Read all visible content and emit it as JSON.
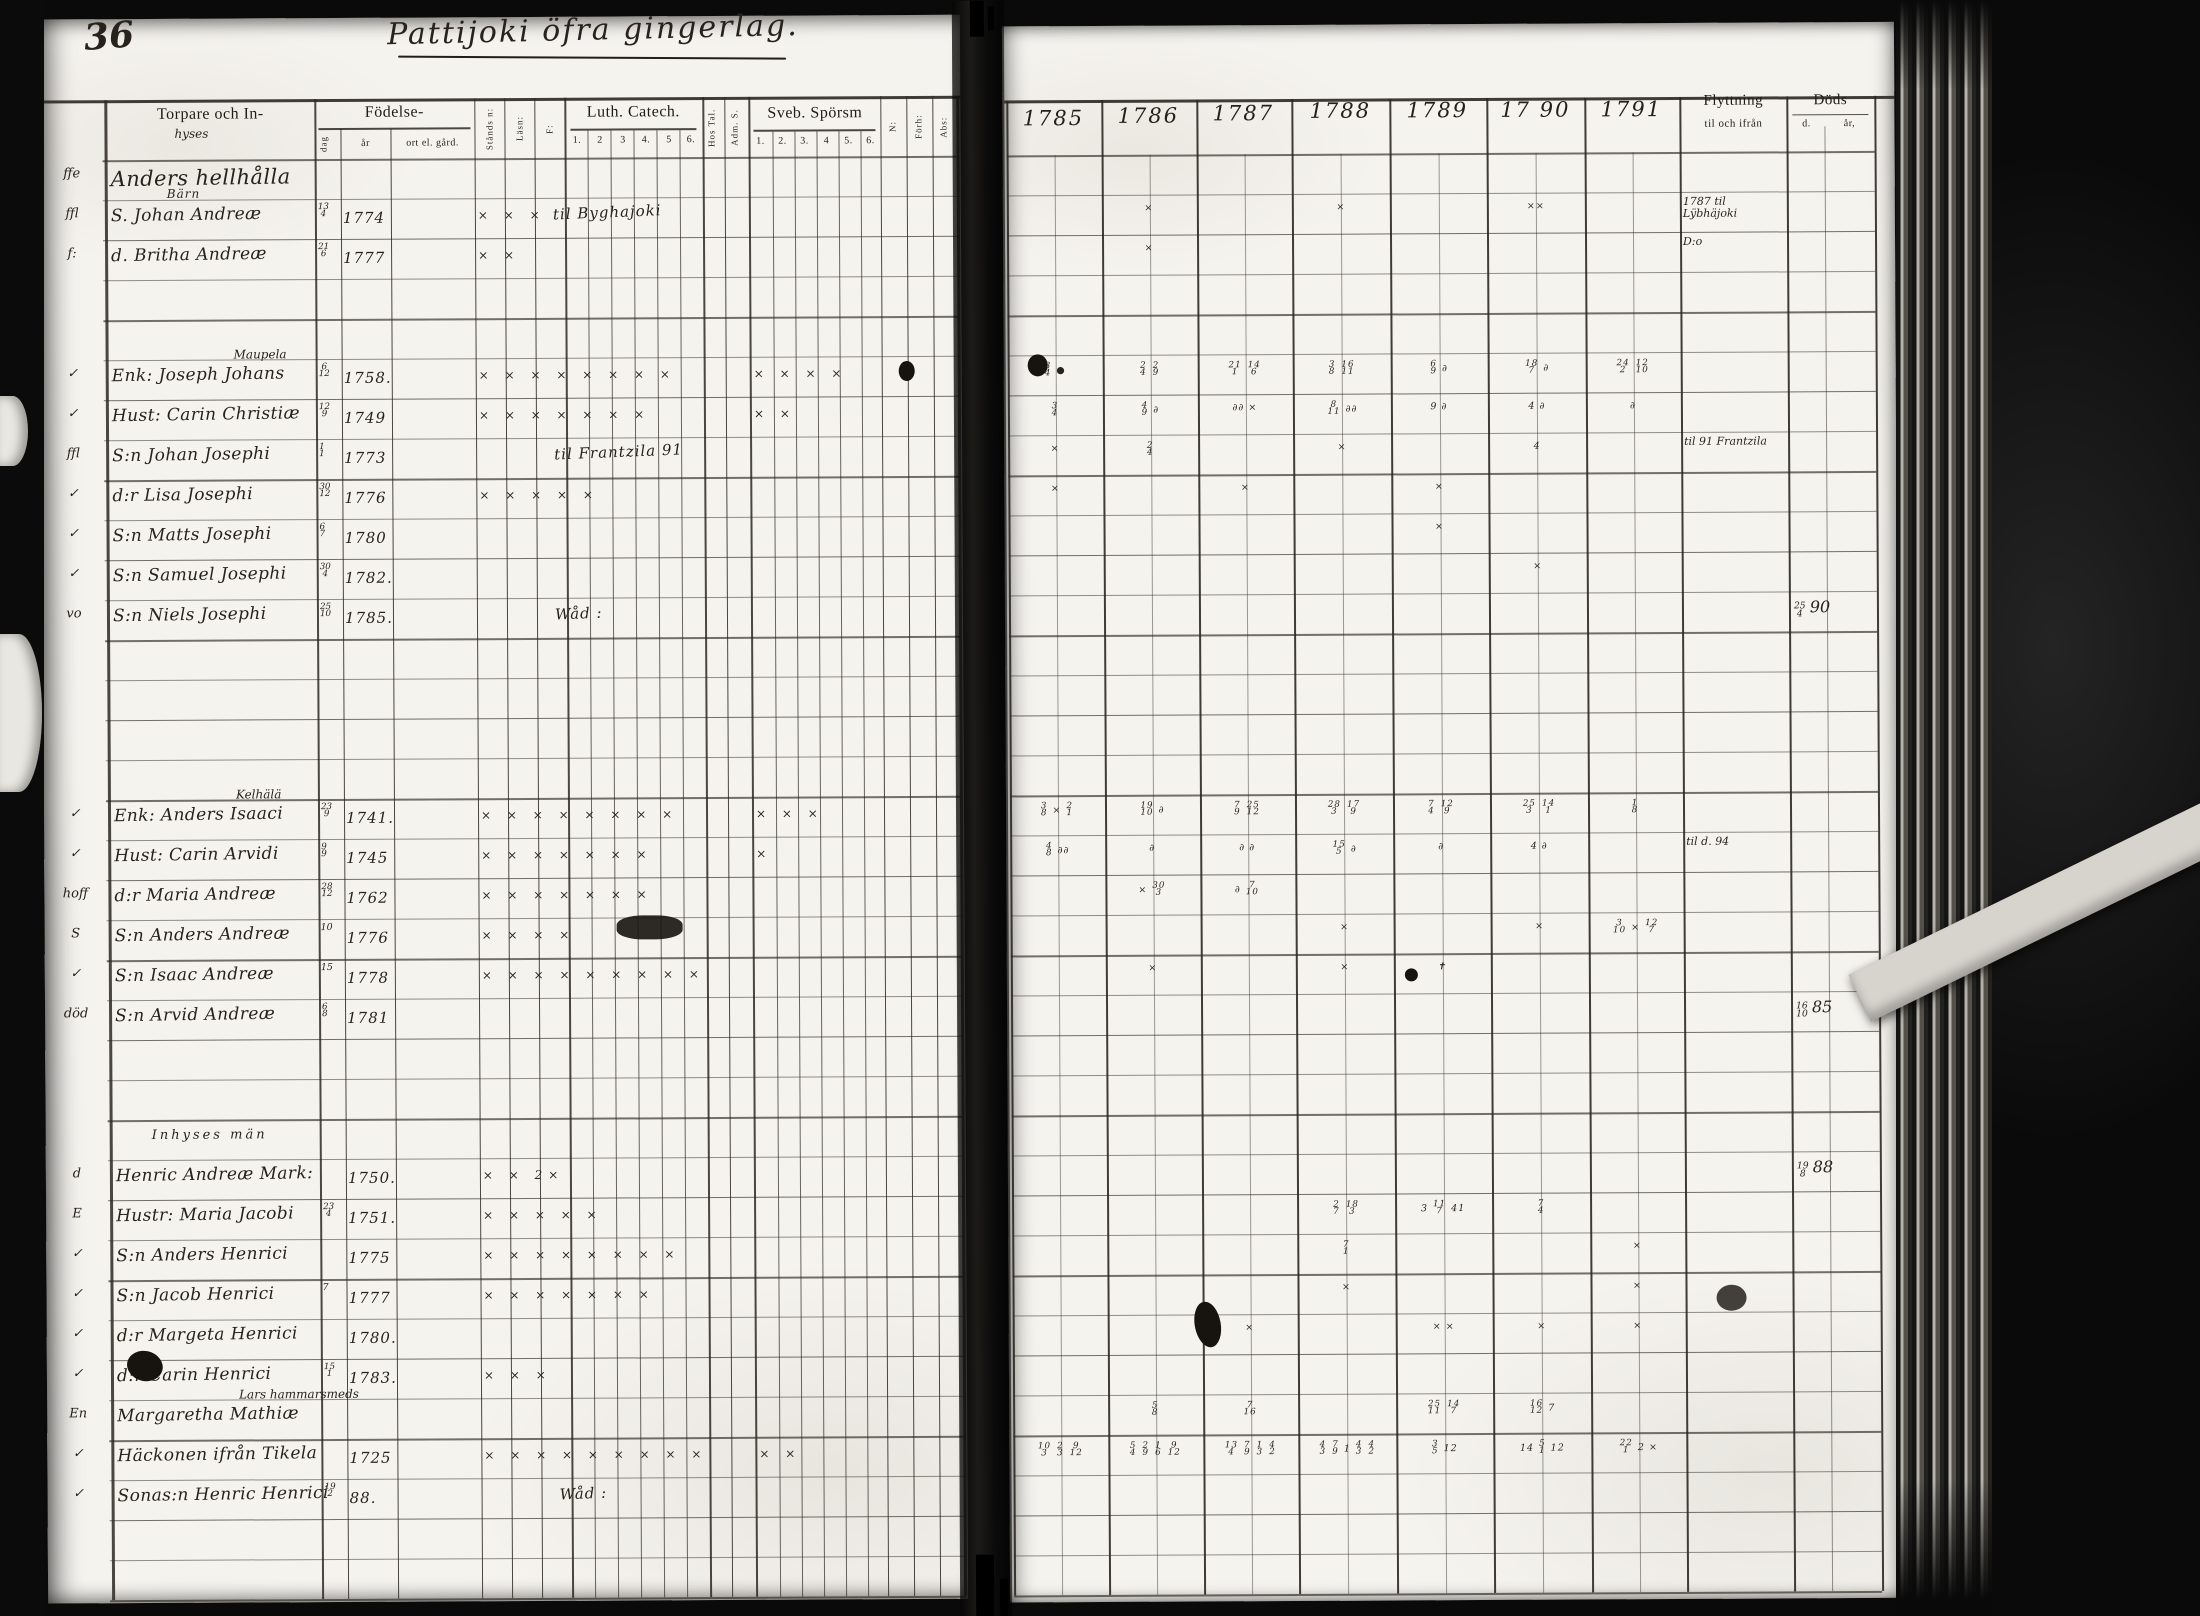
{
  "page": {
    "number": "36",
    "title": "Pattijoki öfra gingerlag."
  },
  "left_table": {
    "name_header": "Torpare och In-",
    "name_header2": "hyses",
    "fodelse": {
      "label": "Födelse-",
      "dag": "dag",
      "ar": "år",
      "ort": "ort el. gård."
    },
    "narrow_left": [
      "Stånds n:",
      "Läsn:",
      "F:"
    ],
    "luth": {
      "label": "Luth. Catech.",
      "nums": [
        "1.",
        "2",
        "3",
        "4.",
        "5",
        "6."
      ]
    },
    "hos": "Hos Tal.",
    "adm": "Adm. S.",
    "sveb": {
      "label": "Sveb. Spörsm",
      "nums": [
        "1.",
        "2.",
        "3.",
        "4",
        "5.",
        "6."
      ]
    },
    "narrow_right": [
      "N:",
      "Förh:",
      "Abs:"
    ]
  },
  "right_table": {
    "years": [
      "1785",
      "1786",
      "1787",
      "1788",
      "1789",
      "17 90",
      "1791"
    ],
    "flytt": {
      "label": "Flyttning",
      "sub": "til och ifrån"
    },
    "dods": {
      "label": "Döds",
      "d": "d.",
      "ar": "år,"
    }
  },
  "rows": [
    {
      "i": 0,
      "big": true,
      "marker": "ffe",
      "name": "Anders hellhålla",
      "sub": "Bärn"
    },
    {
      "i": 1,
      "marker": "ffl",
      "name": "S. Johan Andreæ",
      "dag": "13/4",
      "ar": "1774",
      "luth": "× × ×",
      "note": "til Byghajoki",
      "marks": [
        {
          "c": "1786",
          "t": "×"
        },
        {
          "c": "1788",
          "t": "×"
        },
        {
          "c": "1790",
          "t": "××"
        }
      ],
      "flytt": "1787 til Lÿbhäjoki"
    },
    {
      "i": 2,
      "marker": "f:",
      "name": "d. Britha Andreæ",
      "dag": "21/6",
      "ar": "1777",
      "luth": "× ×",
      "marks": [
        {
          "c": "1786",
          "t": "×"
        }
      ],
      "flytt": "D:o"
    },
    {
      "i": 5,
      "marker": "✓",
      "name": "Enk: Joseph Johans",
      "sup": "Maupela",
      "dag": "6/12",
      "ar": "1758.",
      "luth": "× × × × × × × ×",
      "sveb": "× × × ×",
      "marks": [
        {
          "c": "1785",
          "t": "3/4 ●"
        },
        {
          "c": "1786",
          "t": "2/4 2/9"
        },
        {
          "c": "1787",
          "t": "21/1 14/6"
        },
        {
          "c": "1788",
          "t": "3/8 16/11"
        },
        {
          "c": "1789",
          "t": "6/9 ∂"
        },
        {
          "c": "1790",
          "t": "18/7 ∂"
        },
        {
          "c": "1791",
          "t": "24/2 12/10"
        }
      ]
    },
    {
      "i": 6,
      "marker": "✓",
      "name": "Hust: Carin Christiæ",
      "dag": "12/9",
      "ar": "1749",
      "luth": "× × × × × × ×",
      "sveb": "× ×",
      "marks": [
        {
          "c": "1785",
          "t": "3/4"
        },
        {
          "c": "1786",
          "t": "4/9 ∂"
        },
        {
          "c": "1787",
          "t": "∂∂ ×"
        },
        {
          "c": "1788",
          "t": "8/11 ∂∂"
        },
        {
          "c": "1789",
          "t": "9 ∂"
        },
        {
          "c": "1790",
          "t": "4 ∂"
        },
        {
          "c": "1791",
          "t": "∂"
        }
      ]
    },
    {
      "i": 7,
      "marker": "ffl",
      "name": "S:n Johan Josephi",
      "dag": "1/1",
      "ar": "1773",
      "note": "til Frantzila 91",
      "marks": [
        {
          "c": "1785",
          "t": "×"
        },
        {
          "c": "1786",
          "t": "2/4"
        },
        {
          "c": "1788",
          "t": "×"
        },
        {
          "c": "1790",
          "t": "4"
        }
      ],
      "flytt": "til 91 Frantzila"
    },
    {
      "i": 8,
      "marker": "✓",
      "name": "d:r Lisa Josephi",
      "dag": "30/12",
      "ar": "1776",
      "luth": "× × × × ×",
      "marks": [
        {
          "c": "1785",
          "t": "×"
        },
        {
          "c": "1787",
          "t": "×"
        },
        {
          "c": "1789",
          "t": "×"
        }
      ]
    },
    {
      "i": 9,
      "marker": "✓",
      "name": "S:n Matts Josephi",
      "dag": "6/7",
      "ar": "1780",
      "marks": [
        {
          "c": "1789",
          "t": "×"
        }
      ]
    },
    {
      "i": 10,
      "marker": "✓",
      "name": "S:n Samuel Josephi",
      "dag": "30/4",
      "ar": "1782.",
      "marks": [
        {
          "c": "1790",
          "t": "×"
        }
      ]
    },
    {
      "i": 11,
      "marker": "vo",
      "name": "S:n Niels Josephi",
      "dag": "25/10",
      "ar": "1785.",
      "note": "Wåd :",
      "dods": "25/4 90"
    },
    {
      "i": 16,
      "marker": "✓",
      "name": "Enk: Anders Isaaci",
      "sup": "Kelhälä",
      "dag": "23/9",
      "ar": "1741.",
      "luth": "× × × × × × × ×",
      "sveb": "× × ×",
      "marks": [
        {
          "c": "1785",
          "t": "3/8 × 2/1"
        },
        {
          "c": "1786",
          "t": "19/10 ∂"
        },
        {
          "c": "1787",
          "t": "7/9 25/12"
        },
        {
          "c": "1788",
          "t": "28/3 17/9"
        },
        {
          "c": "1789",
          "t": "7/4 12/9"
        },
        {
          "c": "1790",
          "t": "25/3 14/1"
        },
        {
          "c": "1791",
          "t": "1/8"
        }
      ]
    },
    {
      "i": 17,
      "marker": "✓",
      "name": "Hust: Carin Arvidi",
      "dag": "9/9",
      "ar": "1745",
      "luth": "× × × × × × ×",
      "sveb": "×",
      "marks": [
        {
          "c": "1785",
          "t": "4/8 ∂∂"
        },
        {
          "c": "1786",
          "t": "∂"
        },
        {
          "c": "1787",
          "t": "∂ ∂"
        },
        {
          "c": "1788",
          "t": "15/5 ∂"
        },
        {
          "c": "1789",
          "t": "∂"
        },
        {
          "c": "1790",
          "t": "4 ∂"
        }
      ],
      "flytt": "til d. 94"
    },
    {
      "i": 18,
      "marker": "hoff",
      "name": "d:r Maria Andreæ",
      "dag": "28/12",
      "ar": "1762",
      "luth": "× × × × × × ×",
      "marks": [
        {
          "c": "1786",
          "t": "× 30/3"
        },
        {
          "c": "1787",
          "t": "∂ 7/10"
        }
      ]
    },
    {
      "i": 19,
      "marker": "S",
      "name": "S:n Anders Andreæ",
      "dag": "10",
      "ar": "1776",
      "luth": "× × × ×",
      "marks": [
        {
          "c": "1788",
          "t": "×"
        },
        {
          "c": "1790",
          "t": "×"
        },
        {
          "c": "1791",
          "t": "3/10 × 12/7"
        }
      ]
    },
    {
      "i": 20,
      "marker": "✓",
      "name": "S:n Isaac Andreæ",
      "dag": "15",
      "ar": "1778",
      "luth": "× × × × × × × × ×",
      "marks": [
        {
          "c": "1786",
          "t": "×"
        },
        {
          "c": "1788",
          "t": "×"
        },
        {
          "c": "1789",
          "t": "✝"
        }
      ]
    },
    {
      "i": 21,
      "marker": "död",
      "name": "S:n Arvid Andreæ",
      "dag": "6/8",
      "ar": "1781",
      "dods": "16/10 85"
    },
    {
      "i": 24,
      "group": "Inhyses män"
    },
    {
      "i": 25,
      "marker": "d",
      "name": "Henric Andreæ Mark:",
      "ar": "1750.",
      "luth": "× × 2×",
      "dods": "19/8 88"
    },
    {
      "i": 26,
      "marker": "E",
      "name": "Hustr: Maria Jacobi",
      "dag": "23/4",
      "ar": "1751.",
      "luth": "× × × × ×",
      "marks": [
        {
          "c": "1788",
          "t": "2/7 18/3"
        },
        {
          "c": "1789",
          "t": "3 11/7 41"
        },
        {
          "c": "1790",
          "t": "7/4"
        }
      ]
    },
    {
      "i": 27,
      "marker": "✓",
      "name": "S:n Anders Henrici",
      "ar": "1775",
      "luth": "× × × × × × × ×",
      "marks": [
        {
          "c": "1788",
          "t": "7/1"
        },
        {
          "c": "1791",
          "t": "×"
        }
      ]
    },
    {
      "i": 28,
      "marker": "✓",
      "name": "S:n Jacob Henrici",
      "dag": "7",
      "ar": "1777",
      "luth": "× × × × × × ×",
      "marks": [
        {
          "c": "1788",
          "t": "×"
        },
        {
          "c": "1791",
          "t": "×"
        }
      ]
    },
    {
      "i": 29,
      "marker": "✓",
      "name": "d:r Margeta Henrici",
      "ar": "1780.",
      "marks": [
        {
          "c": "1787",
          "t": "×"
        },
        {
          "c": "1789",
          "t": "× ×"
        },
        {
          "c": "1790",
          "t": "×"
        },
        {
          "c": "1791",
          "t": "×"
        }
      ]
    },
    {
      "i": 30,
      "marker": "✓",
      "name": "d:r Carin Henrici",
      "dag": "15/1",
      "ar": "1783.",
      "luth": "× × ×"
    },
    {
      "i": 31,
      "marker": "En",
      "name": "Margaretha Mathiæ",
      "sup": "Lars hammarsmeds",
      "marks": [
        {
          "c": "1786",
          "t": "5/8"
        },
        {
          "c": "1787",
          "t": "7/16"
        },
        {
          "c": "1789",
          "t": "25/11 14/7"
        },
        {
          "c": "1790",
          "t": "16/12 7"
        }
      ]
    },
    {
      "i": 32,
      "marker": "✓",
      "name": "Häckonen ifrån Tikela",
      "ar": "1725",
      "luth": "× × × × × × × × ×",
      "sveb": "× ×",
      "marks": [
        {
          "c": "1785",
          "t": "10/3 2/3 9/12"
        },
        {
          "c": "1786",
          "t": "5/4 2/9 1/6 9/12"
        },
        {
          "c": "1787",
          "t": "13/4 7/9 1/3 4/2"
        },
        {
          "c": "1788",
          "t": "4/3 7/9 1 4/3 4/2"
        },
        {
          "c": "1789",
          "t": "3/5 12"
        },
        {
          "c": "1790",
          "t": "14 5/1 12"
        },
        {
          "c": "1791",
          "t": "22/1 2 ×"
        }
      ]
    },
    {
      "i": 33,
      "marker": "✓",
      "name": "Sonas:n Henric Henrici",
      "dag": "19/2",
      "ar": "88.",
      "note": "Wåd :"
    }
  ]
}
